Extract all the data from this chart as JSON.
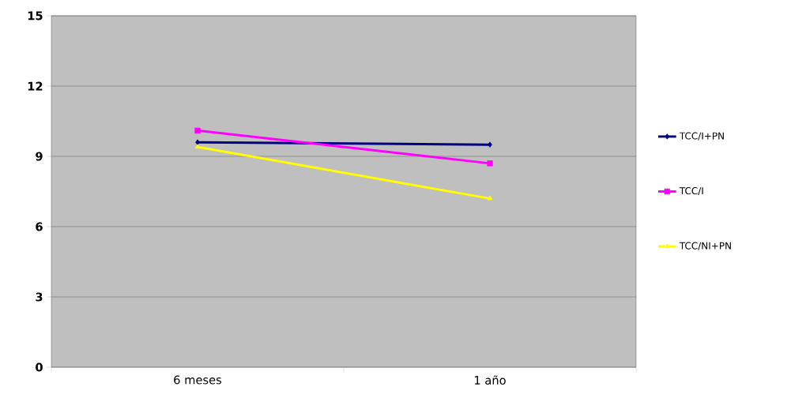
{
  "chart_data": {
    "type": "line",
    "categories": [
      "6 meses",
      "1 año"
    ],
    "series": [
      {
        "name": "TCC/I+PN",
        "color": "#000080",
        "marker": "diamond",
        "values": [
          9.6,
          9.5
        ]
      },
      {
        "name": "TCC/I",
        "color": "#ff00ff",
        "marker": "square",
        "values": [
          10.1,
          8.7
        ]
      },
      {
        "name": "TCC/NI+PN",
        "color": "#ffff00",
        "marker": "triangle",
        "values": [
          9.4,
          7.2
        ]
      }
    ],
    "ylim": [
      0,
      15
    ],
    "yticks": [
      0,
      3,
      6,
      9,
      12,
      15
    ],
    "grid": "y",
    "legend": "right",
    "line_style": "solid"
  }
}
